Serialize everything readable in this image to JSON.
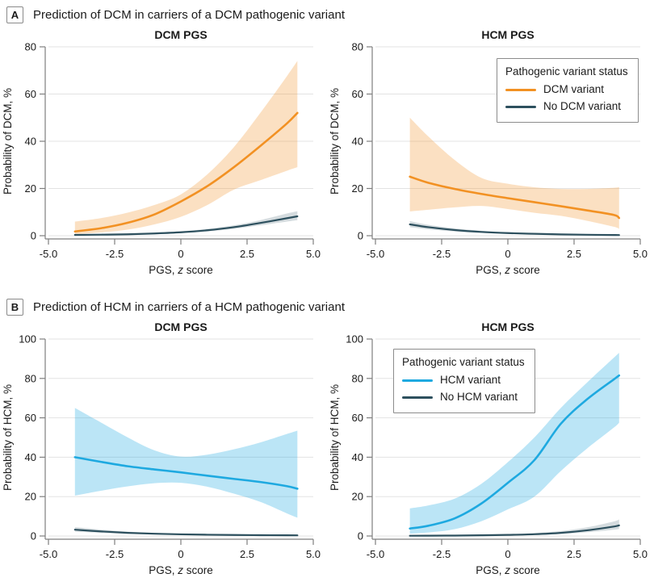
{
  "figure_type": "two-panel prediction curves with 95% confidence bands",
  "colors": {
    "dcm_variant_orange": "#F29123",
    "hcm_variant_blue": "#1EA9E0",
    "no_variant_dark": "#2D505E",
    "grid": "#E3E3E3",
    "axis": "#7F7F7F",
    "text": "#1A1A1A",
    "legend_border": "#8C8C8C",
    "background": "#FFFFFF"
  },
  "axis_shared": {
    "xlabel": "PGS, z score",
    "xlabel_parts": {
      "prefix": "PGS, ",
      "italic": "z",
      "suffix": " score"
    }
  },
  "chart_data": [
    {
      "panel": "A",
      "panel_title": "Prediction of DCM in carriers of a DCM pathogenic variant",
      "position": "top-left",
      "type": "line-with-confidence-band",
      "title": "DCM PGS",
      "xlabel": "PGS, z score",
      "ylabel": "Probability of DCM, %",
      "xlim": [
        -5,
        5
      ],
      "ylim": [
        0,
        80
      ],
      "xticks": [
        -5,
        -2.5,
        0,
        2.5,
        5
      ],
      "xtick_labels": [
        "-5.0",
        "-2.5",
        "0",
        "2.5",
        "5.0"
      ],
      "yticks": [
        0,
        20,
        40,
        60,
        80
      ],
      "grid": "horizontal",
      "legend": null,
      "series": [
        {
          "name": "DCM variant",
          "color": "#F29123",
          "band_opacity": 0.28,
          "x": [
            -4,
            -3,
            -2,
            -1,
            0,
            1,
            2,
            3,
            4,
            4.4
          ],
          "y": [
            1.8,
            3.2,
            5.5,
            9,
            14.5,
            21,
            29,
            38,
            47.5,
            52
          ],
          "upper": [
            6,
            7.5,
            9.8,
            13,
            17.5,
            26,
            37.5,
            52,
            67.5,
            74
          ],
          "lower": [
            0.7,
            1.4,
            2.6,
            4.8,
            8,
            13,
            19.5,
            23.5,
            27.5,
            29
          ]
        },
        {
          "name": "No DCM variant",
          "color": "#2D505E",
          "band_opacity": 0.2,
          "x": [
            -4,
            -3,
            -2,
            -1,
            0,
            1,
            2,
            3,
            4,
            4.4
          ],
          "y": [
            0.35,
            0.45,
            0.6,
            0.95,
            1.45,
            2.3,
            3.6,
            5.4,
            7.4,
            8.2
          ],
          "upper": [
            0.55,
            0.7,
            0.9,
            1.3,
            1.9,
            2.9,
            4.4,
            6.6,
            9.4,
            10.4
          ],
          "lower": [
            0.2,
            0.3,
            0.45,
            0.7,
            1.1,
            1.8,
            2.9,
            4.4,
            6,
            6.6
          ]
        }
      ]
    },
    {
      "panel": "A",
      "panel_title": "Prediction of DCM in carriers of a DCM pathogenic variant",
      "position": "top-right",
      "type": "line-with-confidence-band",
      "title": "HCM PGS",
      "xlabel": "PGS, z score",
      "ylabel": "Probability of DCM, %",
      "xlim": [
        -5,
        5
      ],
      "ylim": [
        0,
        80
      ],
      "xticks": [
        -5,
        -2.5,
        0,
        2.5,
        5
      ],
      "xtick_labels": [
        "-5.0",
        "-2.5",
        "0",
        "2.5",
        "5.0"
      ],
      "yticks": [
        0,
        20,
        40,
        60,
        80
      ],
      "grid": "horizontal",
      "legend": {
        "title": "Pathogenic variant status",
        "position": "top-right",
        "entries": [
          "DCM variant",
          "No DCM variant"
        ]
      },
      "series": [
        {
          "name": "DCM variant",
          "color": "#F29123",
          "band_opacity": 0.28,
          "x": [
            -3.7,
            -3,
            -2,
            -1,
            0,
            1,
            2,
            3,
            4,
            4.2
          ],
          "y": [
            25,
            22.4,
            19.8,
            17.7,
            15.9,
            14.2,
            12.5,
            10.7,
            8.8,
            7.5
          ],
          "upper": [
            50,
            42,
            32,
            24.5,
            22,
            20.5,
            19.8,
            19.8,
            20.3,
            20.6
          ],
          "lower": [
            10.3,
            11,
            12,
            12.6,
            11.3,
            9.7,
            8.4,
            6.3,
            3.8,
            2.9
          ]
        },
        {
          "name": "No DCM variant",
          "color": "#2D505E",
          "band_opacity": 0.2,
          "x": [
            -3.7,
            -3,
            -2,
            -1,
            0,
            1,
            2,
            3,
            4,
            4.2
          ],
          "y": [
            4.8,
            3.6,
            2.4,
            1.6,
            1.1,
            0.8,
            0.55,
            0.4,
            0.3,
            0.28
          ],
          "upper": [
            6.2,
            4.6,
            3.1,
            2.1,
            1.5,
            1.1,
            0.8,
            0.6,
            0.5,
            0.48
          ],
          "lower": [
            3.6,
            2.7,
            1.8,
            1.2,
            0.8,
            0.55,
            0.38,
            0.25,
            0.18,
            0.16
          ]
        }
      ]
    },
    {
      "panel": "B",
      "panel_title": "Prediction of HCM in carriers of a HCM pathogenic variant",
      "position": "bottom-left",
      "type": "line-with-confidence-band",
      "title": "DCM PGS",
      "xlabel": "PGS, z score",
      "ylabel": "Probability of HCM, %",
      "xlim": [
        -5,
        5
      ],
      "ylim": [
        0,
        100
      ],
      "xticks": [
        -5,
        -2.5,
        0,
        2.5,
        5
      ],
      "xtick_labels": [
        "-5.0",
        "-2.5",
        "0",
        "2.5",
        "5.0"
      ],
      "yticks": [
        0,
        20,
        40,
        60,
        80,
        100
      ],
      "grid": "horizontal",
      "legend": null,
      "series": [
        {
          "name": "HCM variant",
          "color": "#1EA9E0",
          "band_opacity": 0.3,
          "x": [
            -4,
            -3,
            -2,
            -1,
            0,
            1,
            2,
            3,
            4,
            4.4
          ],
          "y": [
            40,
            37.6,
            35.4,
            33.8,
            32.3,
            30.6,
            29,
            27.4,
            25.3,
            24
          ],
          "upper": [
            65,
            57.5,
            50,
            43.5,
            40.3,
            41.3,
            44,
            47.5,
            51.8,
            53.5
          ],
          "lower": [
            20.5,
            23,
            25.2,
            26.8,
            27,
            25,
            21.5,
            17.3,
            11.5,
            9.3
          ]
        },
        {
          "name": "No HCM variant",
          "color": "#2D505E",
          "band_opacity": 0.2,
          "x": [
            -4,
            -3,
            -2,
            -1,
            0,
            1,
            2,
            3,
            4,
            4.4
          ],
          "y": [
            3.2,
            2.3,
            1.6,
            1.15,
            0.85,
            0.65,
            0.5,
            0.42,
            0.35,
            0.33
          ],
          "upper": [
            4.5,
            3.2,
            2.2,
            1.6,
            1.15,
            0.9,
            0.7,
            0.6,
            0.5,
            0.48
          ],
          "lower": [
            2.2,
            1.6,
            1.1,
            0.8,
            0.6,
            0.45,
            0.35,
            0.28,
            0.23,
            0.21
          ]
        }
      ]
    },
    {
      "panel": "B",
      "panel_title": "Prediction of HCM in carriers of a HCM pathogenic variant",
      "position": "bottom-right",
      "type": "line-with-confidence-band",
      "title": "HCM PGS",
      "xlabel": "PGS, z score",
      "ylabel": "Probability of HCM, %",
      "xlim": [
        -5,
        5
      ],
      "ylim": [
        0,
        100
      ],
      "xticks": [
        -5,
        -2.5,
        0,
        2.5,
        5
      ],
      "xtick_labels": [
        "-5.0",
        "-2.5",
        "0",
        "2.5",
        "5.0"
      ],
      "yticks": [
        0,
        20,
        40,
        60,
        80,
        100
      ],
      "grid": "horizontal",
      "legend": {
        "title": "Pathogenic variant status",
        "position": "top-left",
        "entries": [
          "HCM variant",
          "No HCM variant"
        ]
      },
      "series": [
        {
          "name": "HCM variant",
          "color": "#1EA9E0",
          "band_opacity": 0.3,
          "x": [
            -3.7,
            -3,
            -2,
            -1,
            0,
            1,
            2,
            3,
            4,
            4.2
          ],
          "y": [
            3.8,
            5.2,
            9,
            16.5,
            27,
            38.5,
            57,
            69.5,
            79.5,
            81.5
          ],
          "upper": [
            14,
            15.5,
            19,
            26.5,
            37.5,
            50,
            65,
            78,
            90.5,
            93
          ],
          "lower": [
            1.2,
            1.8,
            3.5,
            7.5,
            13.5,
            20,
            33,
            44.5,
            55,
            57.5
          ]
        },
        {
          "name": "No HCM variant",
          "color": "#2D505E",
          "band_opacity": 0.2,
          "x": [
            -3.7,
            -3,
            -2,
            -1,
            0,
            1,
            2,
            3,
            4,
            4.2
          ],
          "y": [
            0.12,
            0.15,
            0.22,
            0.35,
            0.55,
            0.9,
            1.6,
            2.9,
            4.8,
            5.4
          ],
          "upper": [
            0.2,
            0.25,
            0.38,
            0.58,
            0.9,
            1.5,
            2.5,
            4.4,
            7.4,
            8.4
          ],
          "lower": [
            0.07,
            0.09,
            0.13,
            0.2,
            0.33,
            0.55,
            1.0,
            1.9,
            3.2,
            3.6
          ]
        }
      ]
    }
  ]
}
